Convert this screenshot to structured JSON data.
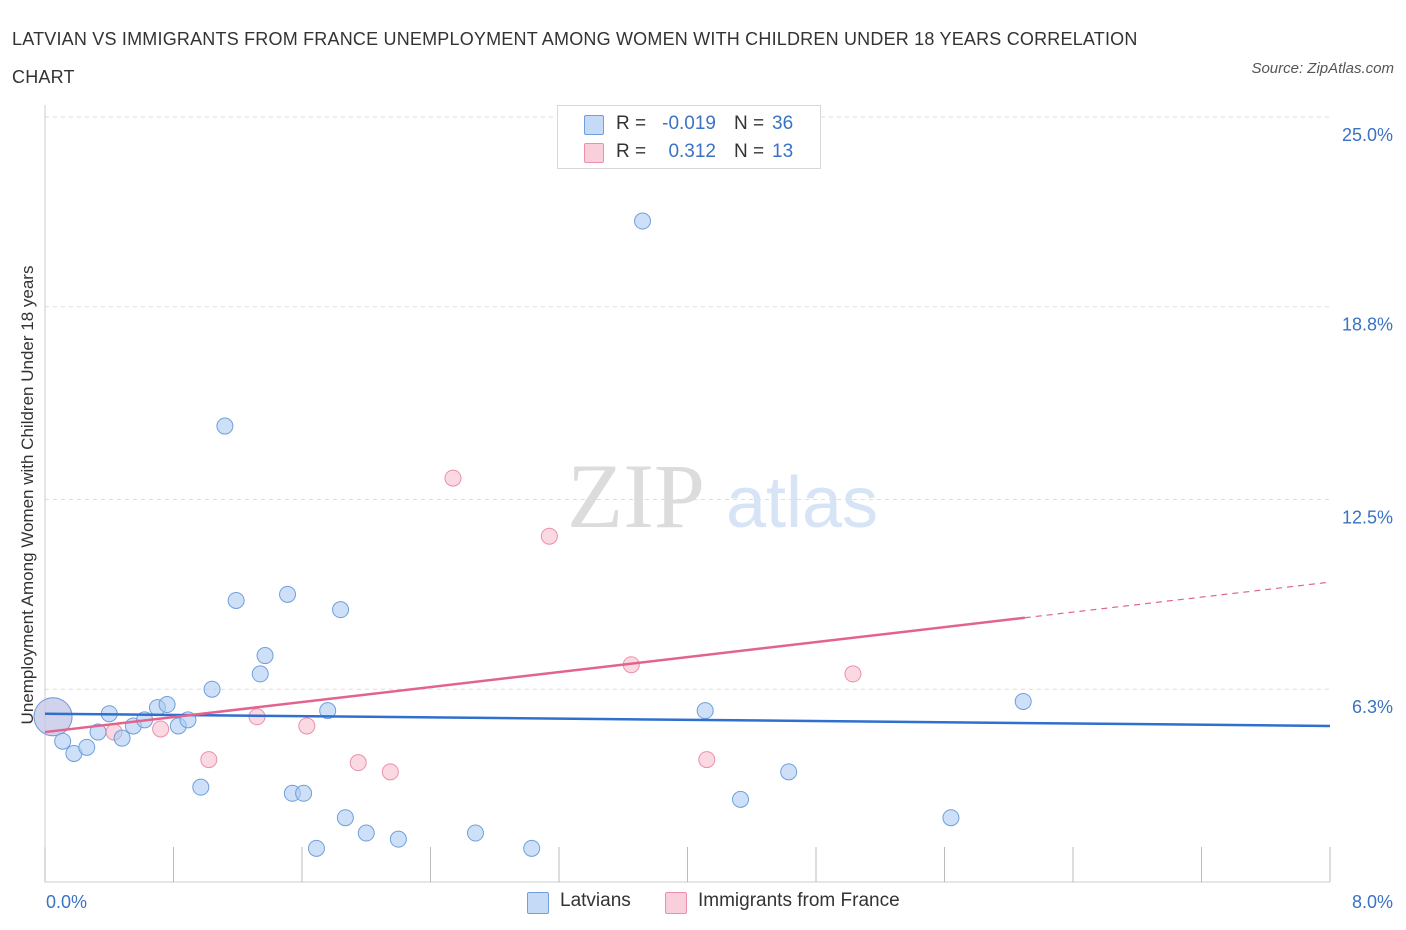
{
  "title": "LATVIAN VS IMMIGRANTS FROM FRANCE UNEMPLOYMENT AMONG WOMEN WITH CHILDREN UNDER 18 YEARS CORRELATION CHART",
  "source": "Source: ZipAtlas.com",
  "watermark": {
    "zip": "ZIP",
    "atlas": "atlas"
  },
  "legend": {
    "rows": [
      {
        "r_label": "R =",
        "r_value": "-0.019",
        "n_label": "N =",
        "n_value": "36"
      },
      {
        "r_label": "R =",
        "r_value": "0.312",
        "n_label": "N =",
        "n_value": "13"
      }
    ]
  },
  "bottom_legend": [
    "Latvians",
    "Immigrants from France"
  ],
  "colors": {
    "latvians_fill": "#aecbf2",
    "latvians_stroke": "#6f9fdc",
    "latvians_line": "#2f6fcd",
    "france_fill": "#f7bfcf",
    "france_stroke": "#ec8fab",
    "france_line": "#e2638e",
    "tick_text": "#3a72c4",
    "grid": "#dddddd"
  },
  "chart_data": {
    "type": "scatter",
    "title": "LATVIAN VS IMMIGRANTS FROM FRANCE UNEMPLOYMENT AMONG WOMEN WITH CHILDREN UNDER 18 YEARS CORRELATION CHART",
    "xlabel": "",
    "ylabel": "Unemployment Among Women with Children Under 18 years",
    "xlim": [
      0,
      8
    ],
    "ylim": [
      0,
      25
    ],
    "x_tick_labels": [
      "0.0%",
      "8.0%"
    ],
    "y_ticks": [
      6.3,
      12.5,
      18.8,
      25.0
    ],
    "y_tick_labels": [
      "6.3%",
      "12.5%",
      "18.8%",
      "25.0%"
    ],
    "grid": "horizontal dashed",
    "legend_position": "top-center",
    "series": [
      {
        "name": "Latvians",
        "r": -0.019,
        "n": 36,
        "trend": {
          "x": [
            0,
            8
          ],
          "y": [
            5.5,
            5.1
          ]
        },
        "points": [
          {
            "x": 0.05,
            "y": 5.4,
            "big": true
          },
          {
            "x": 0.11,
            "y": 4.6
          },
          {
            "x": 0.18,
            "y": 4.2
          },
          {
            "x": 0.26,
            "y": 4.4
          },
          {
            "x": 0.33,
            "y": 4.9
          },
          {
            "x": 0.4,
            "y": 5.5
          },
          {
            "x": 0.48,
            "y": 4.7
          },
          {
            "x": 0.55,
            "y": 5.1
          },
          {
            "x": 0.62,
            "y": 5.3
          },
          {
            "x": 0.7,
            "y": 5.7
          },
          {
            "x": 0.76,
            "y": 5.8
          },
          {
            "x": 0.83,
            "y": 5.1
          },
          {
            "x": 0.89,
            "y": 5.3
          },
          {
            "x": 0.97,
            "y": 3.1
          },
          {
            "x": 1.04,
            "y": 6.3
          },
          {
            "x": 1.12,
            "y": 14.9
          },
          {
            "x": 1.19,
            "y": 9.2
          },
          {
            "x": 1.34,
            "y": 6.8
          },
          {
            "x": 1.37,
            "y": 7.4
          },
          {
            "x": 1.51,
            "y": 9.4
          },
          {
            "x": 1.54,
            "y": 2.9
          },
          {
            "x": 1.61,
            "y": 2.9
          },
          {
            "x": 1.69,
            "y": 1.1
          },
          {
            "x": 1.76,
            "y": 5.6
          },
          {
            "x": 1.84,
            "y": 8.9
          },
          {
            "x": 1.87,
            "y": 2.1
          },
          {
            "x": 2.0,
            "y": 1.6
          },
          {
            "x": 2.2,
            "y": 1.4
          },
          {
            "x": 2.68,
            "y": 1.6
          },
          {
            "x": 3.03,
            "y": 1.1
          },
          {
            "x": 3.72,
            "y": 21.6
          },
          {
            "x": 4.11,
            "y": 5.6
          },
          {
            "x": 4.33,
            "y": 2.7
          },
          {
            "x": 4.63,
            "y": 3.6
          },
          {
            "x": 5.64,
            "y": 2.1
          },
          {
            "x": 6.09,
            "y": 5.9
          }
        ]
      },
      {
        "name": "Immigrants from France",
        "r": 0.312,
        "n": 13,
        "trend": {
          "x": [
            0,
            8
          ],
          "y": [
            4.9,
            9.8
          ],
          "solid_until_x": 6.1
        },
        "points": [
          {
            "x": 0.05,
            "y": 5.4,
            "big": true
          },
          {
            "x": 0.43,
            "y": 4.9
          },
          {
            "x": 0.72,
            "y": 5.0
          },
          {
            "x": 1.02,
            "y": 4.0
          },
          {
            "x": 1.32,
            "y": 5.4
          },
          {
            "x": 1.63,
            "y": 5.1
          },
          {
            "x": 1.95,
            "y": 3.9
          },
          {
            "x": 2.15,
            "y": 3.6
          },
          {
            "x": 2.54,
            "y": 13.2
          },
          {
            "x": 3.14,
            "y": 11.3
          },
          {
            "x": 3.65,
            "y": 7.1
          },
          {
            "x": 4.12,
            "y": 4.0
          },
          {
            "x": 5.03,
            "y": 6.8
          }
        ]
      }
    ]
  }
}
